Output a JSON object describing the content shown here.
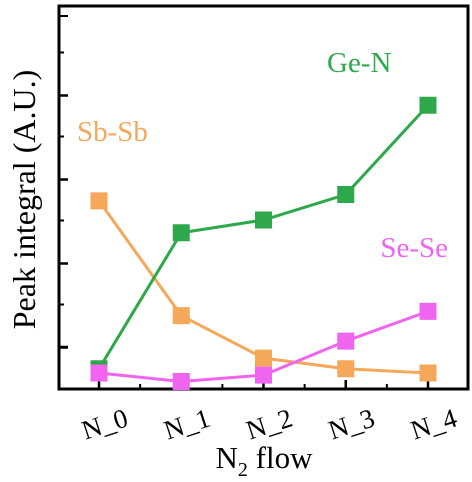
{
  "chart_data": {
    "type": "line",
    "categories": [
      "N_0",
      "N_1",
      "N_2",
      "N_3",
      "N_4"
    ],
    "xlabel": {
      "main": "N",
      "sub": "2",
      "rest": " flow"
    },
    "ylabel": "Peak integral (A.U.)",
    "ylim": [
      0,
      8
    ],
    "y_ticks_labeled": false,
    "grid": false,
    "legend": "none",
    "series": [
      {
        "name": "Sb-Sb",
        "color": "#F5A75A",
        "values": [
          4.45,
          1.75,
          0.75,
          0.5,
          0.4
        ]
      },
      {
        "name": "Ge-N",
        "color": "#2EA84A",
        "values": [
          0.5,
          3.7,
          4.0,
          4.6,
          6.7
        ]
      },
      {
        "name": "Se-Se",
        "color": "#F065F0",
        "values": [
          0.4,
          0.2,
          0.35,
          1.15,
          1.85
        ]
      }
    ]
  }
}
